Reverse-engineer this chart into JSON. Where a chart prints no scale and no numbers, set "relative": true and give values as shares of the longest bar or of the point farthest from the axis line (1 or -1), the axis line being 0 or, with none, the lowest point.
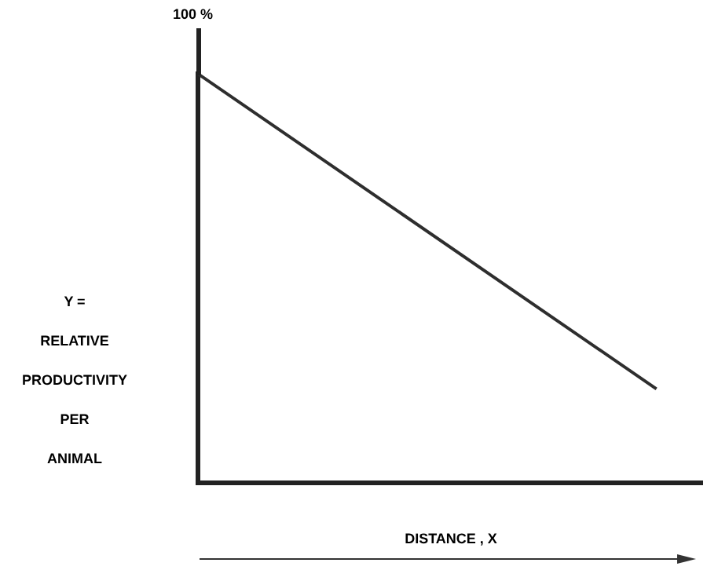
{
  "chart_data": {
    "type": "line",
    "relative": true,
    "xlabel": "DISTANCE , X",
    "ylabel": "Y =\nRELATIVE\nPRODUCTIVITY\nPER\nANIMAL",
    "annotations": [
      "100 %"
    ],
    "categories": [
      null,
      null,
      null,
      null,
      null,
      null,
      null,
      null,
      null,
      null,
      null,
      null
    ],
    "series": [
      {
        "color": "#2e2e2e",
        "values": [
          1,
          null,
          null,
          null,
          null,
          null,
          null,
          null,
          null,
          null,
          0.23,
          null
        ]
      }
    ],
    "marker": "none",
    "grid": false,
    "legend": false
  }
}
